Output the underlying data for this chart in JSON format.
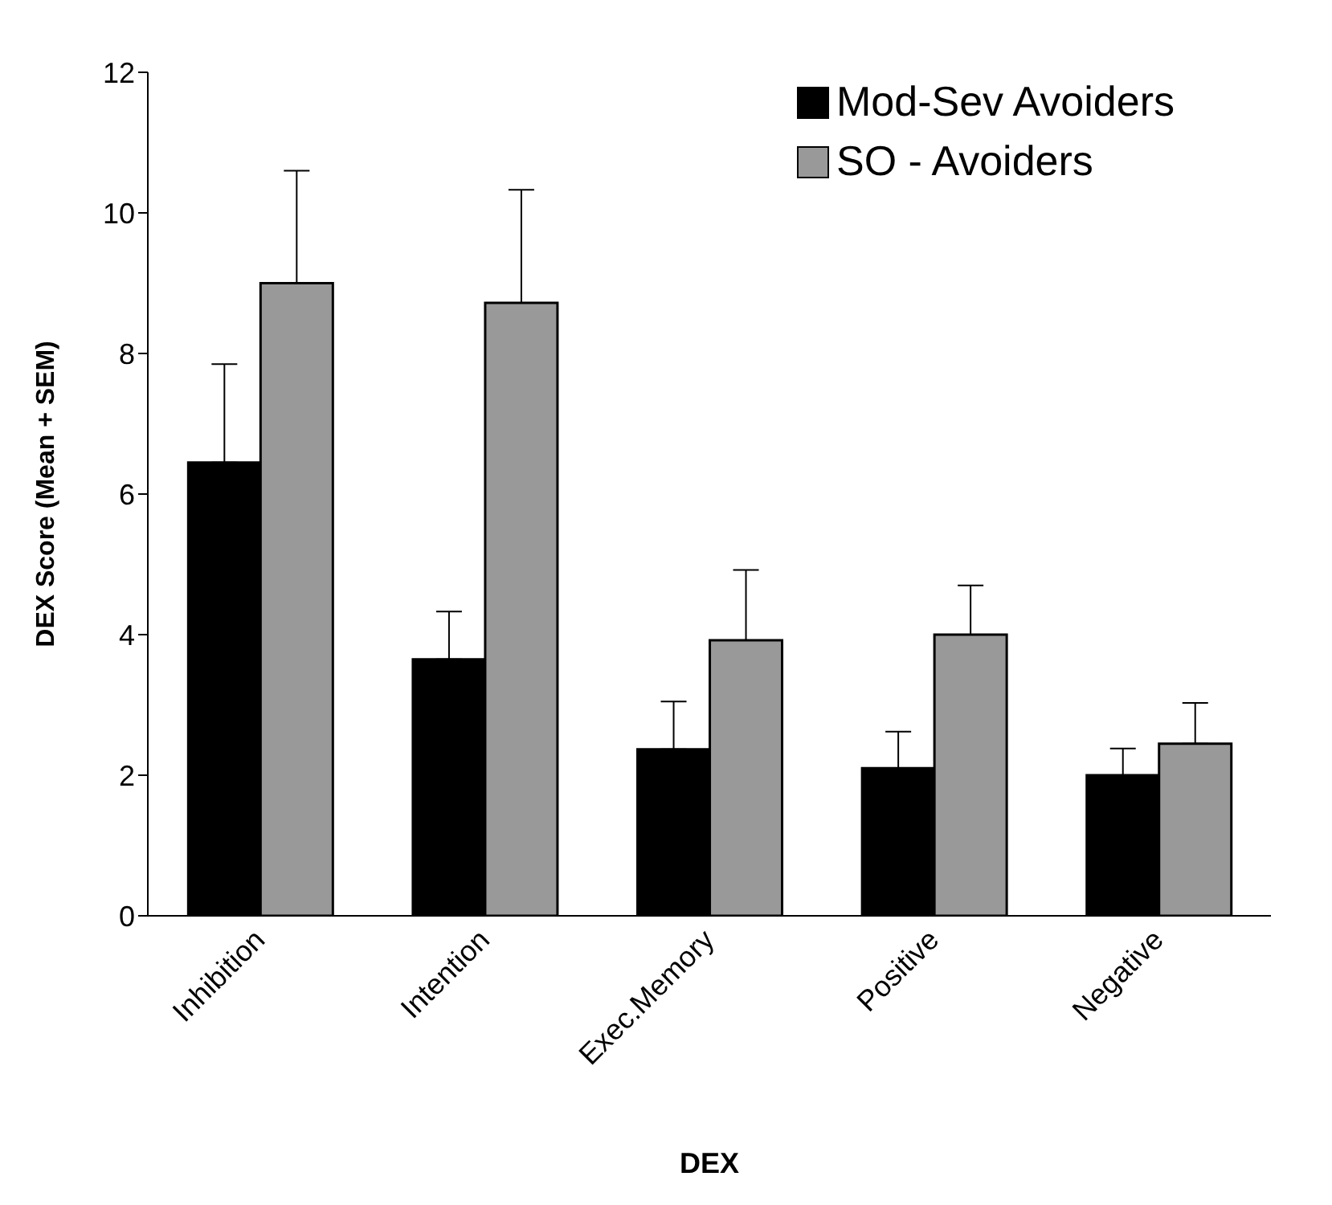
{
  "chart_data": {
    "type": "bar",
    "xlabel": "DEX",
    "ylabel": "DEX Score (Mean + SEM)",
    "categories": [
      "Inhibition",
      "Intention",
      "Exec.Memory",
      "Positive",
      "Negative"
    ],
    "series": [
      {
        "name": "Mod-Sev Avoiders",
        "color": "#000000",
        "values": [
          6.45,
          3.65,
          2.37,
          2.1,
          2.0
        ],
        "errors": [
          [
            6.45,
            7.85
          ],
          [
            3.65,
            4.33
          ],
          [
            2.37,
            3.05
          ],
          [
            2.1,
            2.62
          ],
          [
            2.0,
            2.38
          ]
        ]
      },
      {
        "name": "SO - Avoiders",
        "color": "#999999",
        "values": [
          9.0,
          8.72,
          3.92,
          4.0,
          2.45
        ],
        "errors": [
          [
            9.0,
            10.6
          ],
          [
            8.72,
            10.33
          ],
          [
            3.92,
            4.92
          ],
          [
            4.0,
            4.7
          ],
          [
            2.45,
            3.03
          ]
        ]
      }
    ],
    "ylim": [
      0,
      12
    ],
    "yticks": [
      0,
      2,
      4,
      6,
      8,
      10,
      12
    ],
    "legend": "top right"
  }
}
